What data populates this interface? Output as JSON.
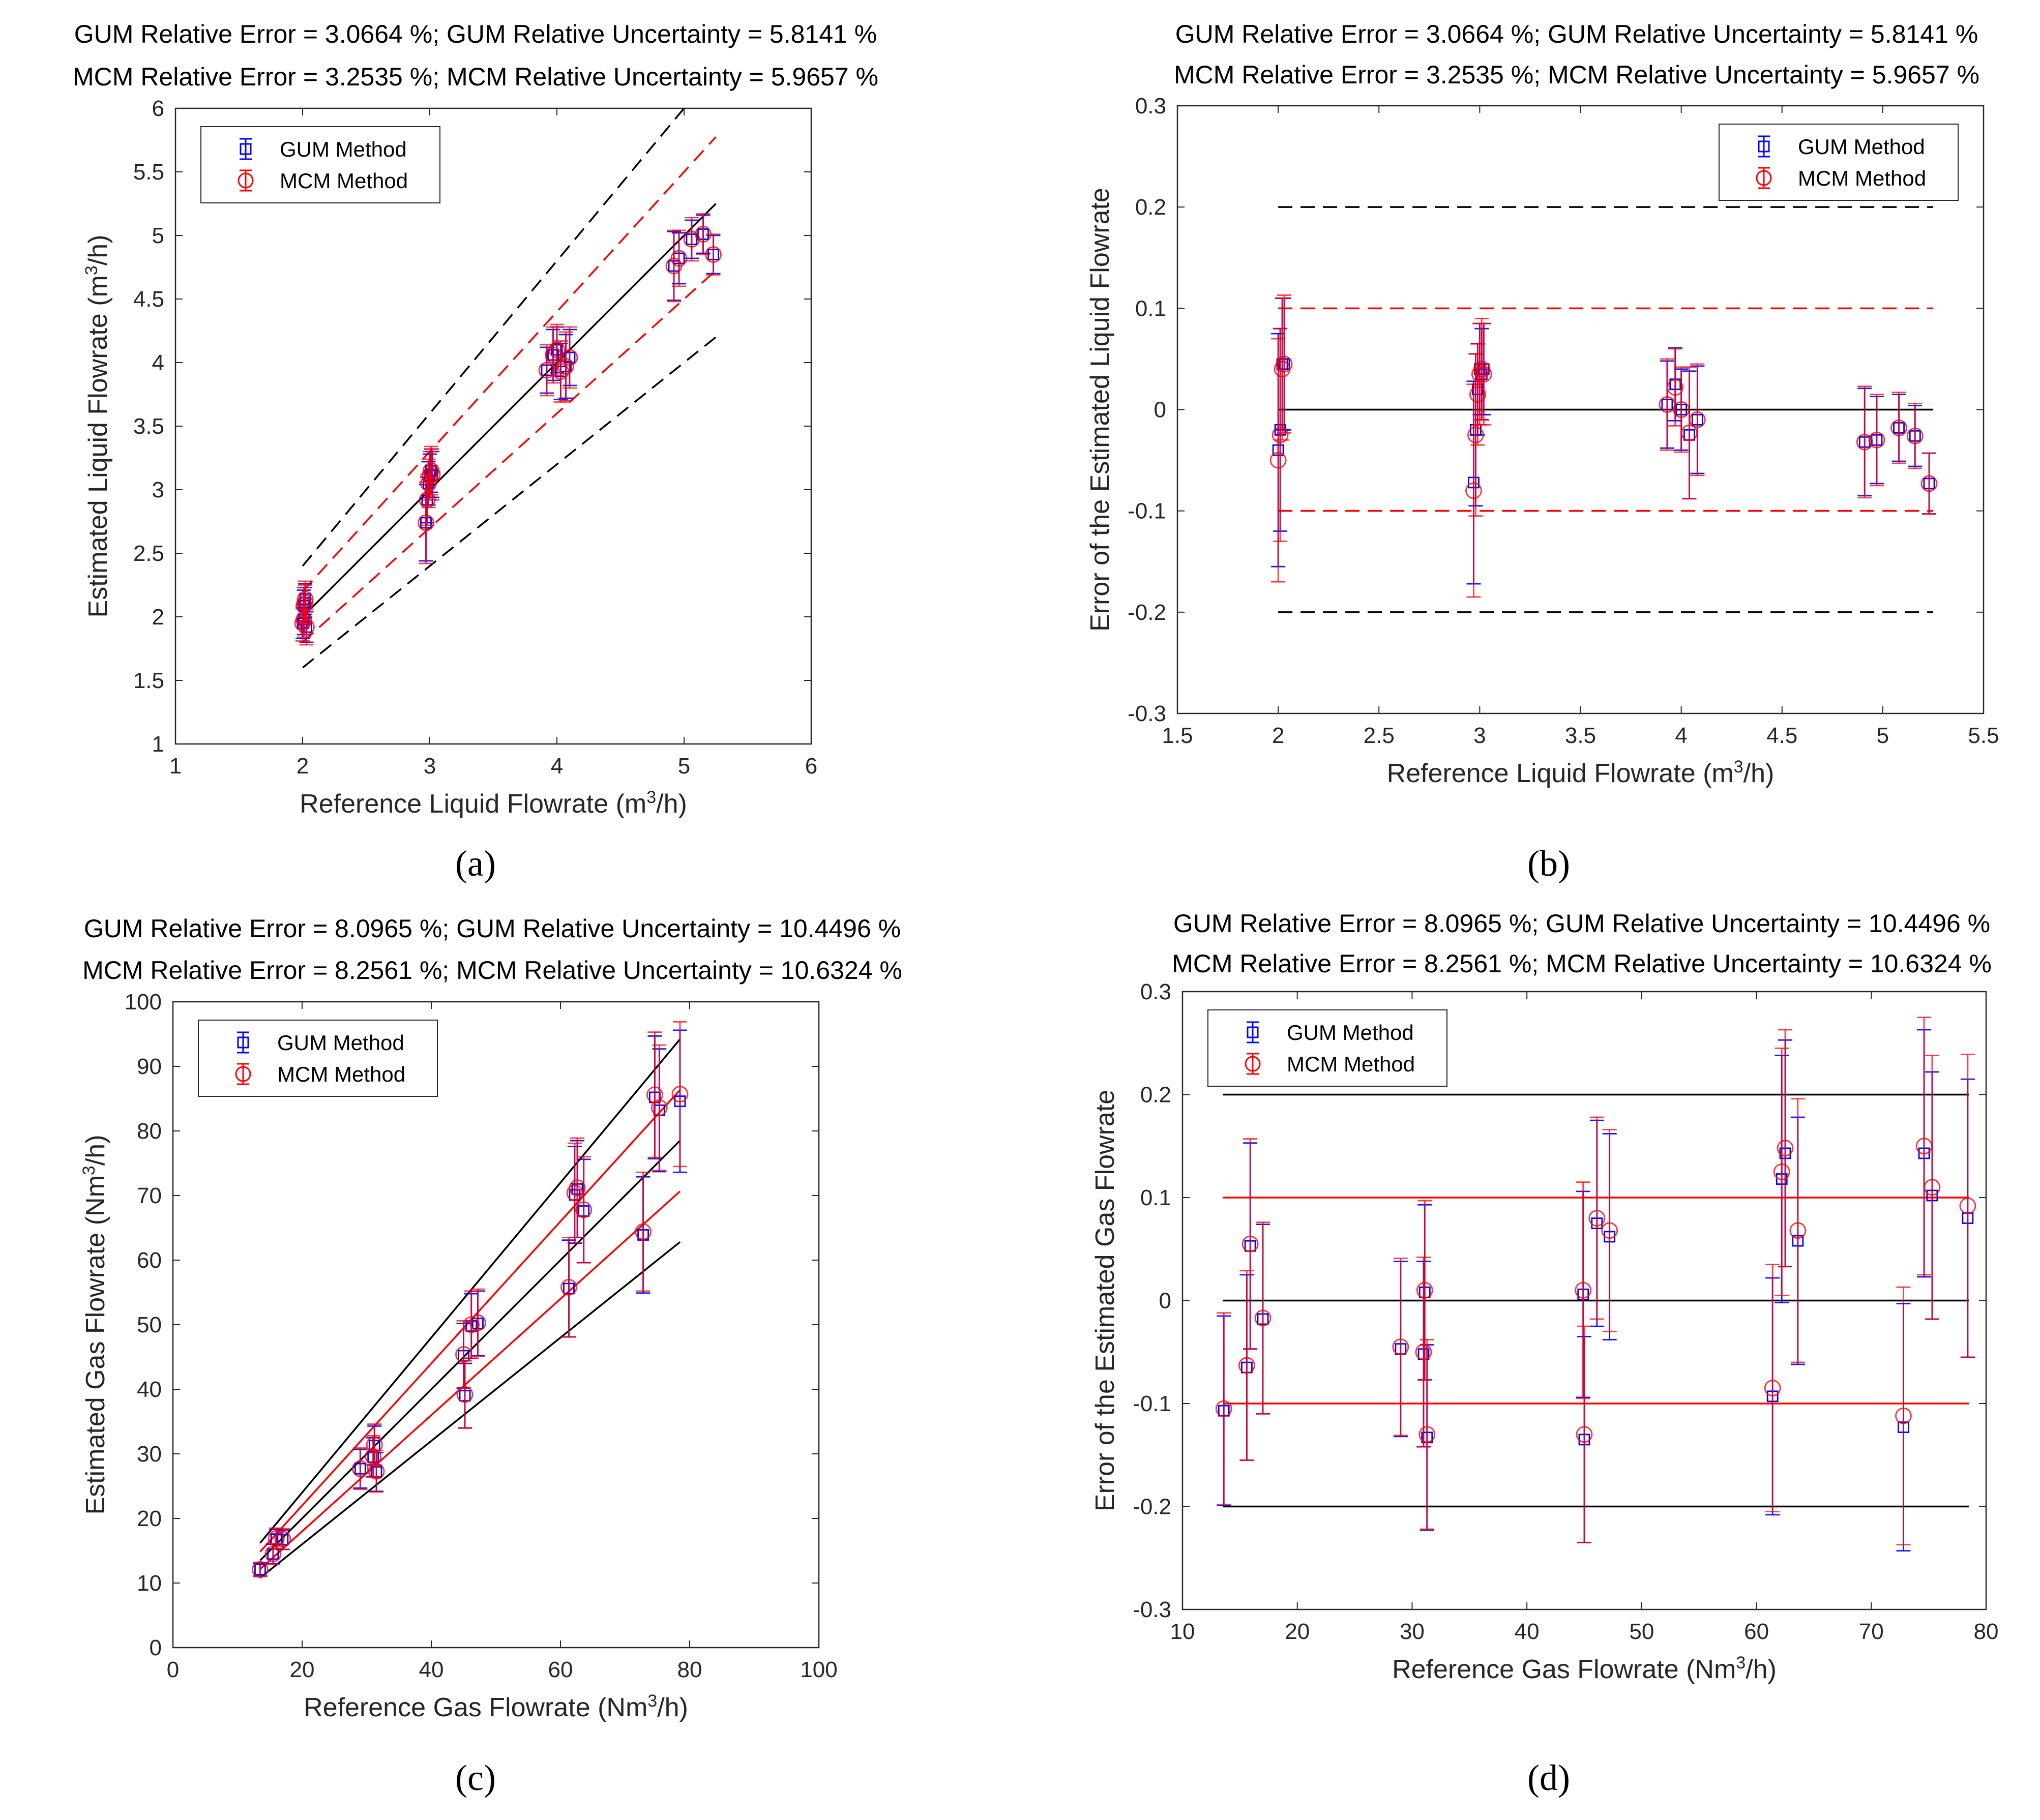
{
  "chart_data": [
    {
      "id": "a",
      "panel_label": "(a)",
      "type": "scatter",
      "stat_lines": [
        "GUM Relative Error = 3.0664 %; GUM Relative Uncertainty = 5.8141 %",
        "MCM Relative Error = 3.2535 %; MCM Relative Uncertainty = 5.9657 %"
      ],
      "xlabel": "Reference Liquid Flowrate (m³/h)",
      "ylabel": "Estimated Liquid Flowrate (m³/h)",
      "xlim": [
        1,
        6
      ],
      "ylim": [
        1,
        6
      ],
      "xticks": [
        1,
        2,
        3,
        4,
        5,
        6
      ],
      "yticks": [
        1,
        1.5,
        2,
        2.5,
        3,
        3.5,
        4,
        4.5,
        5,
        5.5,
        6
      ],
      "legend": [
        "GUM Method",
        "MCM Method"
      ],
      "legend_position": "top-left",
      "reference_lines": [
        {
          "slope": 1.0,
          "x": [
            2,
            5.25
          ],
          "color": "#000000",
          "dash": "solid"
        },
        {
          "slope": 1.1,
          "x": [
            2,
            5.25
          ],
          "color": "#ff0000",
          "dash": "dashed"
        },
        {
          "slope": 0.9,
          "x": [
            2,
            5.25
          ],
          "color": "#ff0000",
          "dash": "dashed"
        },
        {
          "slope": 1.2,
          "x": [
            2,
            5.25
          ],
          "color": "#000000",
          "dash": "dashed"
        },
        {
          "slope": 0.8,
          "x": [
            2,
            5.25
          ],
          "color": "#000000",
          "dash": "dashed"
        }
      ],
      "series": [
        {
          "name": "GUM Method",
          "color": "#0000ff",
          "marker": "square",
          "x": [
            2.0,
            2.01,
            2.01,
            2.02,
            2.02,
            2.03,
            2.97,
            2.98,
            2.99,
            3.0,
            3.01,
            3.02,
            3.92,
            3.97,
            4.0,
            4.03,
            4.07,
            4.1,
            4.92,
            4.96,
            5.06,
            5.15,
            5.23
          ],
          "y": [
            1.95,
            1.98,
            2.09,
            2.11,
            2.14,
            1.92,
            2.74,
            2.92,
            3.05,
            3.11,
            3.15,
            3.12,
            3.94,
            4.06,
            4.1,
            3.93,
            3.97,
            4.04,
            4.76,
            4.82,
            4.97,
            5.01,
            4.85
          ],
          "err": [
            0.12,
            0.12,
            0.12,
            0.12,
            0.12,
            0.12,
            0.3,
            0.18,
            0.17,
            0.17,
            0.17,
            0.18,
            0.18,
            0.2,
            0.18,
            0.22,
            0.25,
            0.22,
            0.27,
            0.2,
            0.15,
            0.15,
            0.15
          ]
        },
        {
          "name": "MCM Method",
          "color": "#ff0000",
          "marker": "circle",
          "x": [
            2.0,
            2.01,
            2.01,
            2.02,
            2.02,
            2.03,
            2.97,
            2.98,
            2.99,
            3.0,
            3.01,
            3.02,
            3.92,
            3.97,
            4.0,
            4.03,
            4.07,
            4.1,
            4.92,
            4.96,
            5.06,
            5.15,
            5.23
          ],
          "y": [
            1.95,
            1.98,
            2.09,
            2.11,
            2.14,
            1.92,
            2.74,
            2.92,
            3.05,
            3.11,
            3.15,
            3.12,
            3.94,
            4.06,
            4.1,
            3.93,
            3.97,
            4.04,
            4.76,
            4.82,
            4.97,
            5.01,
            4.85
          ],
          "err": [
            0.14,
            0.14,
            0.14,
            0.14,
            0.14,
            0.14,
            0.32,
            0.2,
            0.19,
            0.19,
            0.19,
            0.2,
            0.2,
            0.22,
            0.2,
            0.24,
            0.27,
            0.24,
            0.28,
            0.22,
            0.17,
            0.16,
            0.16
          ]
        }
      ]
    },
    {
      "id": "b",
      "panel_label": "(b)",
      "type": "scatter",
      "stat_lines": [
        "GUM Relative Error = 3.0664 %;  GUM Relative Uncertainty = 5.8141 %",
        "MCM Relative Error = 3.2535 %;  MCM Relative Uncertainty = 5.9657 %"
      ],
      "xlabel": "Reference Liquid Flowrate (m³/h)",
      "ylabel": "Error of the Estimated Liquid Flowrate",
      "xlim": [
        1.5,
        5.5
      ],
      "ylim": [
        -0.3,
        0.3
      ],
      "xticks": [
        1.5,
        2,
        2.5,
        3,
        3.5,
        4,
        4.5,
        5,
        5.5
      ],
      "yticks": [
        -0.3,
        -0.2,
        -0.1,
        0,
        0.1,
        0.2,
        0.3
      ],
      "legend": [
        "GUM Method",
        "MCM Method"
      ],
      "legend_position": "top-right",
      "reference_lines": [
        {
          "y": 0,
          "x": [
            2,
            5.25
          ],
          "color": "#000000",
          "dash": "solid"
        },
        {
          "y": 0.1,
          "x": [
            2,
            5.25
          ],
          "color": "#ff0000",
          "dash": "dashed"
        },
        {
          "y": -0.1,
          "x": [
            2,
            5.25
          ],
          "color": "#ff0000",
          "dash": "dashed"
        },
        {
          "y": 0.2,
          "x": [
            2,
            5.25
          ],
          "color": "#000000",
          "dash": "dashed"
        },
        {
          "y": -0.2,
          "x": [
            2,
            5.25
          ],
          "color": "#000000",
          "dash": "dashed"
        }
      ],
      "series": [
        {
          "name": "GUM Method",
          "color": "#0000ff",
          "marker": "square",
          "x": [
            2.0,
            2.01,
            2.02,
            2.03,
            2.97,
            2.98,
            2.99,
            3.0,
            3.01,
            3.02,
            3.93,
            3.97,
            4.0,
            4.04,
            4.08,
            4.91,
            4.97,
            5.08,
            5.16,
            5.23
          ],
          "y": [
            -0.04,
            -0.02,
            0.045,
            0.045,
            -0.072,
            -0.02,
            0.02,
            0.04,
            0.035,
            0.04,
            0.005,
            0.025,
            0.0,
            -0.025,
            -0.01,
            -0.032,
            -0.03,
            -0.018,
            -0.026,
            -0.073
          ],
          "err": [
            0.115,
            0.1,
            0.065,
            0.065,
            0.1,
            0.075,
            0.045,
            0.045,
            0.045,
            0.045,
            0.043,
            0.036,
            0.04,
            0.063,
            0.053,
            0.053,
            0.043,
            0.033,
            0.03,
            0.03
          ]
        },
        {
          "name": "MCM Method",
          "color": "#ff0000",
          "marker": "circle",
          "x": [
            2.0,
            2.01,
            2.02,
            2.03,
            2.97,
            2.98,
            2.99,
            3.0,
            3.01,
            3.02,
            3.93,
            3.97,
            4.0,
            4.04,
            4.08,
            4.91,
            4.97,
            5.08,
            5.16,
            5.23
          ],
          "y": [
            -0.05,
            -0.025,
            0.04,
            0.045,
            -0.08,
            -0.025,
            0.015,
            0.035,
            0.04,
            0.035,
            0.005,
            0.022,
            0.0,
            -0.023,
            -0.01,
            -0.032,
            -0.03,
            -0.018,
            -0.026,
            -0.073
          ],
          "err": [
            0.12,
            0.105,
            0.07,
            0.068,
            0.105,
            0.08,
            0.05,
            0.05,
            0.05,
            0.05,
            0.045,
            0.038,
            0.042,
            0.065,
            0.055,
            0.055,
            0.045,
            0.035,
            0.032,
            0.03
          ]
        }
      ]
    },
    {
      "id": "c",
      "panel_label": "(c)",
      "type": "scatter",
      "stat_lines": [
        "GUM Relative Error = 8.0965 %;  GUM Relative Uncertainty = 10.4496 %",
        "MCM Relative Error = 8.2561 %;  MCM Relative Uncertainty = 10.6324 %"
      ],
      "xlabel": "Reference Gas Flowrate (Nm³/h)",
      "ylabel": "Estimated Gas Flowrate (Nm³/h)",
      "xlim": [
        0,
        100
      ],
      "ylim": [
        0,
        100
      ],
      "xticks": [
        0,
        20,
        40,
        60,
        80,
        100
      ],
      "yticks": [
        0,
        10,
        20,
        30,
        40,
        50,
        60,
        70,
        80,
        90,
        100
      ],
      "legend": [
        "GUM Method",
        "MCM Method"
      ],
      "legend_position": "top-left",
      "reference_lines": [
        {
          "slope": 1.0,
          "x": [
            13.5,
            78.5
          ],
          "color": "#000000",
          "dash": "solid"
        },
        {
          "slope": 1.1,
          "x": [
            13.5,
            78.5
          ],
          "color": "#ff0000",
          "dash": "solid"
        },
        {
          "slope": 0.9,
          "x": [
            13.5,
            78.5
          ],
          "color": "#ff0000",
          "dash": "solid"
        },
        {
          "slope": 1.2,
          "x": [
            13.5,
            78.5
          ],
          "color": "#000000",
          "dash": "solid"
        },
        {
          "slope": 0.8,
          "x": [
            13.5,
            78.5
          ],
          "color": "#000000",
          "dash": "solid"
        }
      ],
      "series": [
        {
          "name": "GUM Method",
          "color": "#0000ff",
          "marker": "square",
          "x": [
            13.5,
            15.5,
            16.0,
            17.0,
            29.0,
            31.0,
            31.2,
            31.5,
            45.0,
            45.2,
            46.2,
            47.2,
            61.3,
            62.2,
            62.6,
            63.6,
            72.8,
            74.6,
            75.3,
            78.5
          ],
          "y": [
            12.1,
            14.5,
            16.8,
            16.7,
            27.7,
            29.5,
            31.3,
            27.2,
            45.2,
            39.0,
            49.8,
            50.2,
            55.6,
            70.1,
            71.0,
            67.6,
            63.9,
            85.2,
            83.2,
            84.6
          ],
          "err": [
            1.0,
            1.5,
            1.5,
            1.5,
            3.0,
            3.0,
            3.0,
            3.0,
            5.0,
            5.0,
            5.0,
            5.0,
            7.5,
            7.5,
            7.5,
            8.0,
            9.0,
            9.5,
            9.5,
            11.0
          ]
        },
        {
          "name": "MCM Method",
          "color": "#ff0000",
          "marker": "circle",
          "x": [
            13.5,
            15.5,
            16.0,
            17.0,
            29.0,
            31.0,
            31.2,
            31.5,
            45.0,
            45.2,
            46.2,
            47.2,
            61.3,
            62.2,
            62.6,
            63.6,
            72.8,
            74.6,
            75.3,
            78.5
          ],
          "y": [
            12.1,
            14.5,
            16.9,
            16.8,
            27.7,
            29.6,
            31.4,
            27.3,
            45.4,
            39.2,
            50.0,
            50.3,
            55.8,
            70.4,
            71.2,
            67.8,
            64.4,
            85.6,
            83.6,
            85.7
          ],
          "err": [
            1.1,
            1.6,
            1.6,
            1.6,
            3.2,
            3.2,
            3.2,
            3.2,
            5.2,
            5.2,
            5.2,
            5.2,
            7.7,
            7.7,
            7.7,
            8.2,
            9.2,
            9.7,
            9.7,
            11.2
          ]
        }
      ]
    },
    {
      "id": "d",
      "panel_label": "(d)",
      "type": "scatter",
      "stat_lines": [
        "GUM Relative Error = 8.0965 %;  GUM Relative Uncertainty = 10.4496 %",
        "MCM Relative Error = 8.2561 %;  MCM Relative Uncertainty = 10.6324 %"
      ],
      "xlabel": "Reference Gas Flowrate (Nm³/h)",
      "ylabel": "Error of the Estimated Gas Flowrate",
      "xlim": [
        10,
        80
      ],
      "ylim": [
        -0.3,
        0.3
      ],
      "xticks": [
        10,
        20,
        30,
        40,
        50,
        60,
        70,
        80
      ],
      "yticks": [
        -0.3,
        -0.2,
        -0.1,
        0,
        0.1,
        0.2,
        0.3
      ],
      "legend": [
        "GUM Method",
        "MCM Method"
      ],
      "legend_position": "top-left",
      "reference_lines": [
        {
          "y": 0,
          "x": [
            13.5,
            78.5
          ],
          "color": "#000000",
          "dash": "solid"
        },
        {
          "y": 0.1,
          "x": [
            13.5,
            78.5
          ],
          "color": "#ff0000",
          "dash": "solid"
        },
        {
          "y": -0.1,
          "x": [
            13.5,
            78.5
          ],
          "color": "#ff0000",
          "dash": "solid"
        },
        {
          "y": 0.2,
          "x": [
            13.5,
            78.5
          ],
          "color": "#000000",
          "dash": "solid"
        },
        {
          "y": -0.2,
          "x": [
            13.5,
            78.5
          ],
          "color": "#000000",
          "dash": "solid"
        }
      ],
      "series": [
        {
          "name": "GUM Method",
          "color": "#0000ff",
          "marker": "square",
          "x": [
            13.6,
            15.6,
            15.9,
            17.0,
            29.0,
            31.0,
            31.1,
            31.3,
            44.9,
            45.0,
            46.1,
            47.2,
            61.4,
            62.2,
            62.5,
            63.6,
            72.8,
            74.6,
            75.3,
            78.4
          ],
          "y": [
            -0.107,
            -0.065,
            0.053,
            -0.018,
            -0.047,
            -0.052,
            0.008,
            -0.133,
            0.006,
            -0.135,
            0.075,
            0.062,
            -0.093,
            0.118,
            0.143,
            0.058,
            -0.123,
            0.143,
            0.102,
            0.08
          ],
          "err": [
            0.092,
            0.09,
            0.1,
            0.092,
            0.085,
            0.09,
            0.085,
            0.09,
            0.1,
            0.1,
            0.1,
            0.1,
            0.115,
            0.12,
            0.11,
            0.12,
            0.12,
            0.12,
            0.12,
            0.135
          ]
        },
        {
          "name": "MCM Method",
          "color": "#ff0000",
          "marker": "circle",
          "x": [
            13.6,
            15.6,
            15.9,
            17.0,
            29.0,
            31.0,
            31.1,
            31.3,
            44.9,
            45.0,
            46.1,
            47.2,
            61.4,
            62.2,
            62.5,
            63.6,
            72.8,
            74.6,
            75.3,
            78.4
          ],
          "y": [
            -0.105,
            -0.063,
            0.055,
            -0.017,
            -0.045,
            -0.05,
            0.01,
            -0.13,
            0.01,
            -0.13,
            0.08,
            0.068,
            -0.085,
            0.125,
            0.148,
            0.068,
            -0.112,
            0.15,
            0.11,
            0.092
          ],
          "err": [
            0.093,
            0.092,
            0.102,
            0.093,
            0.086,
            0.092,
            0.087,
            0.092,
            0.105,
            0.105,
            0.098,
            0.098,
            0.12,
            0.12,
            0.115,
            0.128,
            0.125,
            0.125,
            0.128,
            0.147
          ]
        }
      ]
    }
  ]
}
